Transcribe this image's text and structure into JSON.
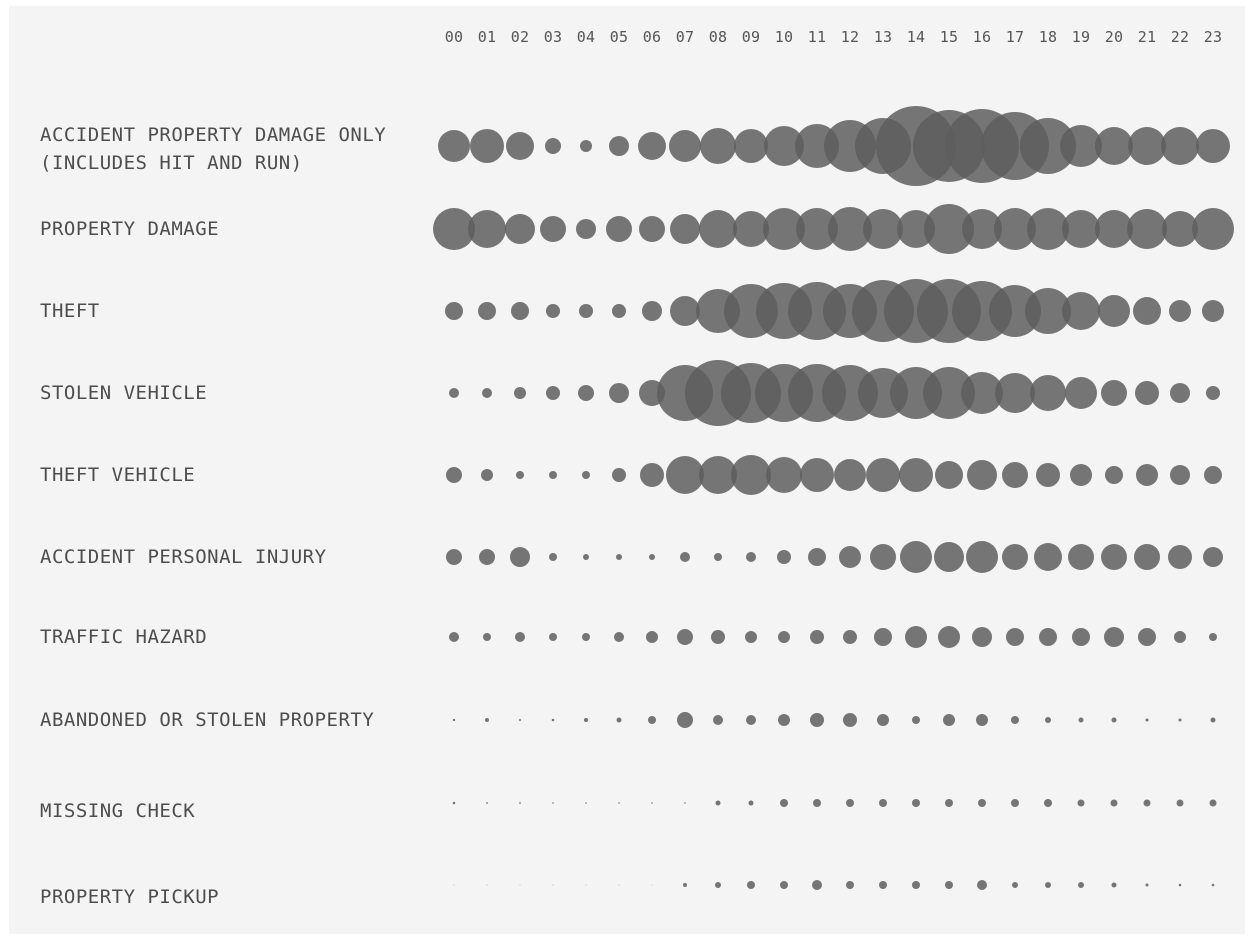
{
  "chart_data": {
    "type": "scatter",
    "description_style": "bubble matrix: size encodes relative count per hour",
    "x": [
      "00",
      "01",
      "02",
      "03",
      "04",
      "05",
      "06",
      "07",
      "08",
      "09",
      "10",
      "11",
      "12",
      "13",
      "14",
      "15",
      "16",
      "17",
      "18",
      "19",
      "20",
      "21",
      "22",
      "23"
    ],
    "x_axis_position": "top",
    "legend": "none",
    "grid": false,
    "colors": {
      "background": "#f4f4f4",
      "bubble": "#5e5e5e",
      "bubble_opacity": 0.85,
      "text": "#4d4d4d"
    },
    "series": [
      {
        "name": "ACCIDENT PROPERTY DAMAGE ONLY (INCLUDES HIT AND RUN)",
        "label_lines": [
          "ACCIDENT PROPERTY DAMAGE ONLY",
          "(INCLUDES HIT AND RUN)"
        ],
        "values": [
          16,
          17,
          14,
          8,
          6,
          10,
          14,
          16,
          18,
          17,
          20,
          22,
          26,
          28,
          40,
          36,
          37,
          34,
          28,
          21,
          19,
          19,
          19,
          17
        ]
      },
      {
        "name": "PROPERTY DAMAGE",
        "label_lines": [
          "PROPERTY DAMAGE"
        ],
        "values": [
          21,
          19,
          15,
          13,
          10,
          13,
          13,
          15,
          19,
          18,
          21,
          21,
          22,
          20,
          19,
          25,
          20,
          21,
          21,
          19,
          19,
          20,
          18,
          21
        ]
      },
      {
        "name": "THEFT",
        "label_lines": [
          "THEFT"
        ],
        "values": [
          9,
          9,
          9,
          7,
          7,
          7,
          10,
          15,
          22,
          27,
          28,
          29,
          27,
          31,
          32,
          32,
          30,
          26,
          23,
          19,
          16,
          14,
          11,
          11
        ]
      },
      {
        "name": "STOLEN VEHICLE",
        "label_lines": [
          "STOLEN VEHICLE"
        ],
        "values": [
          5,
          5,
          6,
          7,
          8,
          10,
          13,
          28,
          33,
          30,
          29,
          29,
          28,
          25,
          26,
          26,
          21,
          20,
          18,
          16,
          13,
          12,
          10,
          7
        ]
      },
      {
        "name": "THEFT VEHICLE",
        "label_lines": [
          "THEFT VEHICLE"
        ],
        "values": [
          8,
          6,
          4,
          4,
          4,
          7,
          12,
          19,
          19,
          20,
          18,
          17,
          16,
          17,
          17,
          14,
          15,
          13,
          12,
          11,
          9,
          11,
          10,
          9
        ]
      },
      {
        "name": "ACCIDENT PERSONAL INJURY",
        "label_lines": [
          "ACCIDENT PERSONAL INJURY"
        ],
        "values": [
          8,
          8,
          10,
          4,
          3,
          3,
          3,
          5,
          4,
          5,
          7,
          9,
          11,
          13,
          16,
          15,
          16,
          13,
          14,
          13,
          13,
          13,
          12,
          10
        ]
      },
      {
        "name": "TRAFFIC HAZARD",
        "label_lines": [
          "TRAFFIC HAZARD"
        ],
        "values": [
          5,
          4,
          5,
          4,
          4,
          5,
          6,
          8,
          7,
          6,
          6,
          7,
          7,
          9,
          11,
          11,
          10,
          9,
          9,
          9,
          10,
          9,
          6,
          4
        ]
      },
      {
        "name": "ABANDONED OR STOLEN PROPERTY",
        "label_lines": [
          "ABANDONED OR STOLEN PROPERTY"
        ],
        "values": [
          1.2,
          2,
          1,
          1.3,
          2,
          2.5,
          4,
          8,
          5,
          5,
          6,
          7,
          7,
          6,
          4,
          6,
          6,
          4,
          3,
          2.5,
          2.5,
          1.5,
          1.5,
          2.5
        ]
      },
      {
        "name": "MISSING CHECK",
        "label_lines": [
          "MISSING CHECK"
        ],
        "values": [
          1.3,
          0.9,
          0.9,
          0.8,
          0.8,
          0.8,
          0.8,
          0.8,
          2.5,
          2.5,
          4,
          4,
          4,
          4,
          4,
          4,
          4,
          4,
          4,
          3.5,
          3.5,
          3.5,
          3.5,
          3.5
        ]
      },
      {
        "name": "PROPERTY PICKUP",
        "label_lines": [
          "PROPERTY PICKUP"
        ],
        "values": [
          0.4,
          0.4,
          0.4,
          0.4,
          0.4,
          0.4,
          0.4,
          2,
          3,
          4,
          4,
          5,
          4,
          4,
          4,
          4,
          5,
          3,
          3,
          3,
          2.5,
          1.5,
          1.3,
          1.3
        ]
      }
    ]
  }
}
